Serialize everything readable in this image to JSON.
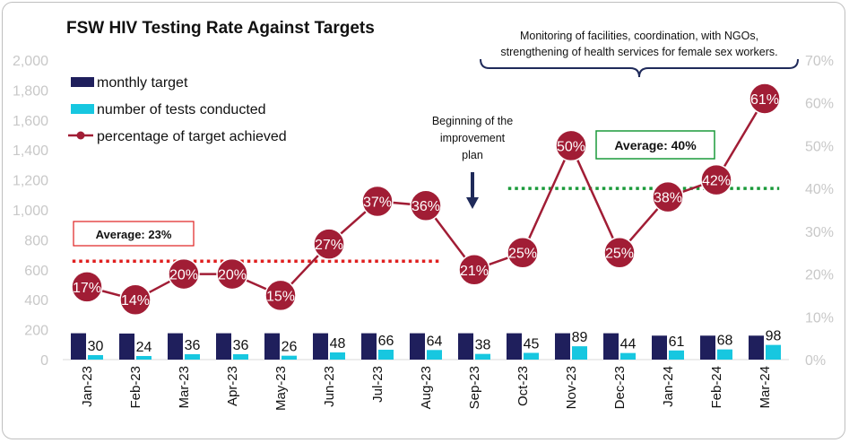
{
  "chart_data": {
    "type": "bar+line",
    "title": "FSW HIV Testing Rate Against Targets",
    "categories": [
      "Jan-23",
      "Feb-23",
      "Mar-23",
      "Apr-23",
      "May-23",
      "Jun-23",
      "Jul-23",
      "Aug-23",
      "Sep-23",
      "Oct-23",
      "Nov-23",
      "Dec-23",
      "Jan-24",
      "Feb-24",
      "Mar-24"
    ],
    "series": [
      {
        "name": "monthly target",
        "kind": "bar",
        "axis": "left",
        "color": "#1f1f5c",
        "values": [
          176,
          174,
          176,
          176,
          176,
          176,
          176,
          176,
          176,
          176,
          176,
          176,
          160,
          160,
          160
        ]
      },
      {
        "name": "number of tests conducted",
        "kind": "bar",
        "axis": "left",
        "color": "#17c7e0",
        "values": [
          30,
          24,
          36,
          36,
          26,
          48,
          66,
          64,
          38,
          45,
          89,
          44,
          61,
          68,
          98
        ],
        "labels": [
          "30",
          "24",
          "36",
          "36",
          "26",
          "48",
          "66",
          "64",
          "38",
          "45",
          "89",
          "44",
          "61",
          "68",
          "98"
        ]
      },
      {
        "name": "percentage of target achieved",
        "kind": "line",
        "axis": "right",
        "color": "#a11d35",
        "values": [
          17,
          14,
          20,
          20,
          15,
          27,
          37,
          36,
          21,
          25,
          50,
          25,
          38,
          42,
          61
        ],
        "labels": [
          "17%",
          "14%",
          "20%",
          "20%",
          "15%",
          "27%",
          "37%",
          "36%",
          "21%",
          "25%",
          "50%",
          "25%",
          "38%",
          "42%",
          "61%"
        ]
      }
    ],
    "left_axis": {
      "ylim": [
        0,
        2000
      ],
      "ticks": [
        "0",
        "200",
        "400",
        "600",
        "800",
        "1,000",
        "1,200",
        "1,400",
        "1,600",
        "1,800",
        "2,000"
      ]
    },
    "right_axis": {
      "ylim": [
        0,
        70
      ],
      "ticks": [
        "0%",
        "10%",
        "20%",
        "30%",
        "40%",
        "50%",
        "60%",
        "70%"
      ]
    },
    "averages": [
      {
        "label": "Average: 23%",
        "value": 23,
        "from": "Jan-23",
        "to": "Aug-23",
        "color": "#e02020"
      },
      {
        "label": "Average: 40%",
        "value": 40,
        "from": "Oct-23",
        "to": "Mar-24",
        "color": "#1a9a3a"
      }
    ],
    "annotations": {
      "improvement": [
        "Beginning of the",
        "improvement",
        "plan"
      ],
      "monitoring": [
        "Monitoring of facilities, coordination, with NGOs,",
        "strengthening of health services for female sex workers."
      ]
    },
    "legend": {
      "position": "top-left"
    },
    "grid": false
  }
}
